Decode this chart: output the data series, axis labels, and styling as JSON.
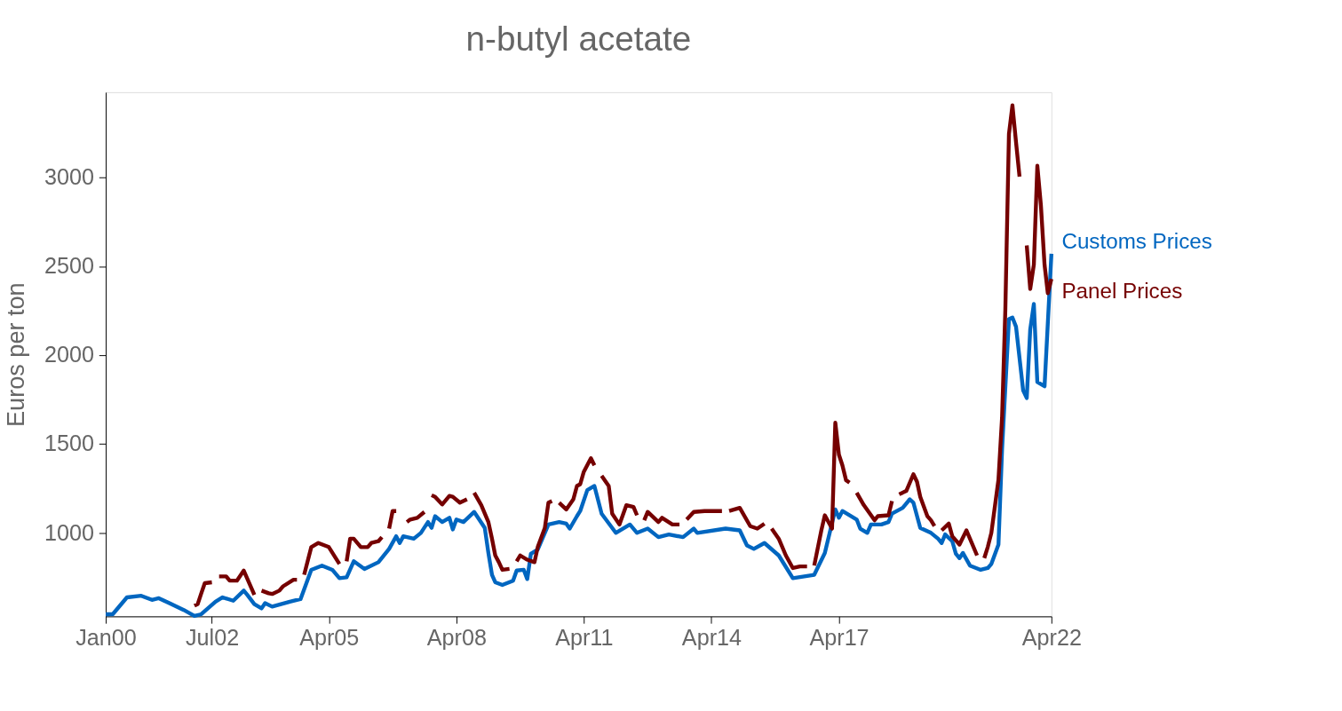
{
  "chart_data": {
    "type": "line",
    "title": "n-butyl acetate",
    "ylabel": "Euros per ton",
    "xlim": [
      "2000-01",
      "2022-04"
    ],
    "xticks": [
      {
        "value": "2000-01",
        "label": "Jan00"
      },
      {
        "value": "2002-07",
        "label": "Jul02"
      },
      {
        "value": "2005-04",
        "label": "Apr05"
      },
      {
        "value": "2008-04",
        "label": "Apr08"
      },
      {
        "value": "2011-04",
        "label": "Apr11"
      },
      {
        "value": "2014-04",
        "label": "Apr14"
      },
      {
        "value": "2017-04",
        "label": "Apr17"
      },
      {
        "value": "2022-04",
        "label": "Apr22"
      }
    ],
    "ylim": [
      530,
      3480
    ],
    "yticks": [
      1000,
      1500,
      2000,
      2500,
      3000
    ],
    "grid": false,
    "legend": false,
    "line_style": "solid",
    "marker": "none",
    "series": [
      {
        "name": "Customs Prices",
        "color": "#0066c0",
        "x": [
          "2000-01",
          "2000-03",
          "2000-07",
          "2000-11",
          "2001-02",
          "2001-04",
          "2001-07",
          "2001-11",
          "2002-02",
          "2002-04",
          "2002-08",
          "2002-10",
          "2003-01",
          "2003-04",
          "2003-05",
          "2003-07",
          "2003-09",
          "2003-10",
          "2003-12",
          "2004-05",
          "2004-08",
          "2004-11",
          "2005-02",
          "2005-05",
          "2005-07",
          "2005-09",
          "2005-11",
          "2006-02",
          "2006-06",
          "2006-09",
          "2006-11",
          "2006-12",
          "2007-01",
          "2007-04",
          "2007-06",
          "2007-08",
          "2007-09",
          "2007-10",
          "2007-12",
          "2008-02",
          "2008-03",
          "2008-04",
          "2008-06",
          "2008-09",
          "2008-12",
          "2009-01",
          "2009-02",
          "2009-03",
          "2009-05",
          "2009-08",
          "2009-09",
          "2009-11",
          "2009-12",
          "2010-01",
          "2010-03",
          "2010-06",
          "2010-09",
          "2010-11",
          "2010-12",
          "2011-02",
          "2011-03",
          "2011-05",
          "2011-07",
          "2011-09",
          "2012-01",
          "2012-05",
          "2012-07",
          "2012-10",
          "2013-01",
          "2013-04",
          "2013-08",
          "2013-11",
          "2013-12",
          "2014-08",
          "2014-12",
          "2015-02",
          "2015-04",
          "2015-07",
          "2015-11",
          "2016-03",
          "2016-09",
          "2016-12",
          "2017-03",
          "2017-04",
          "2017-05",
          "2017-09",
          "2017-10",
          "2017-12",
          "2018-01",
          "2018-04",
          "2018-06",
          "2018-07",
          "2018-10",
          "2018-12",
          "2019-01",
          "2019-03",
          "2019-06",
          "2019-08",
          "2019-09",
          "2019-10",
          "2019-12",
          "2020-01",
          "2020-02",
          "2020-03",
          "2020-05",
          "2020-08",
          "2020-10",
          "2020-11",
          "2021-01",
          "2021-02",
          "2021-04",
          "2021-05",
          "2021-06",
          "2021-08",
          "2021-09",
          "2021-10",
          "2021-11",
          "2021-12",
          "2022-02",
          "2022-04"
        ],
        "values": [
          542,
          542,
          637,
          646,
          623,
          632,
          604,
          566,
          533,
          542,
          613,
          637,
          618,
          675,
          651,
          599,
          575,
          604,
          585,
          613,
          627,
          792,
          816,
          792,
          745,
          750,
          840,
          797,
          835,
          910,
          981,
          943,
          981,
          967,
          1000,
          1061,
          1028,
          1094,
          1061,
          1085,
          1019,
          1075,
          1061,
          1118,
          1028,
          887,
          764,
          722,
          707,
          731,
          788,
          792,
          740,
          882,
          906,
          1047,
          1061,
          1052,
          1024,
          1094,
          1123,
          1241,
          1264,
          1108,
          1000,
          1047,
          1000,
          1024,
          976,
          991,
          976,
          1024,
          1000,
          1024,
          1014,
          929,
          910,
          943,
          873,
          745,
          764,
          887,
          1132,
          1085,
          1123,
          1075,
          1024,
          1000,
          1047,
          1047,
          1061,
          1108,
          1141,
          1189,
          1170,
          1028,
          1000,
          967,
          943,
          991,
          953,
          882,
          858,
          887,
          816,
          792,
          802,
          825,
          934,
          1472,
          2203,
          2212,
          2160,
          1802,
          1759,
          2146,
          2288,
          1849,
          1825,
          2571
        ]
      },
      {
        "name": "Panel Prices",
        "color": "#750000",
        "x": [
          "2002-02",
          "2002-03",
          "2002-04",
          "2002-05",
          "2002-07",
          "2002-08",
          "2002-09",
          "2002-11",
          "2002-12",
          "2003-02",
          "2003-04",
          "2003-07",
          "2003-08",
          "2003-09",
          "2003-11",
          "2003-12",
          "2004-02",
          "2004-03",
          "2004-06",
          "2004-07",
          "2004-08",
          "2004-09",
          "2004-11",
          "2005-01",
          "2005-04",
          "2005-07",
          "2005-08",
          "2005-09",
          "2005-10",
          "2005-11",
          "2006-01",
          "2006-03",
          "2006-04",
          "2006-06",
          "2006-07",
          "2006-08",
          "2006-09",
          "2006-10",
          "2006-11",
          "2006-12",
          "2007-02",
          "2007-03",
          "2007-05",
          "2007-07",
          "2007-08",
          "2007-09",
          "2007-10",
          "2007-12",
          "2008-02",
          "2008-03",
          "2008-05",
          "2008-07",
          "2008-08",
          "2008-09",
          "2008-11",
          "2009-01",
          "2009-02",
          "2009-03",
          "2009-04",
          "2009-05",
          "2009-07",
          "2009-08",
          "2009-09",
          "2009-10",
          "2009-12",
          "2010-02",
          "2010-03",
          "2010-05",
          "2010-06",
          "2010-07",
          "2010-08",
          "2010-09",
          "2010-11",
          "2011-01",
          "2011-02",
          "2011-03",
          "2011-04",
          "2011-06",
          "2011-07",
          "2011-08",
          "2011-09",
          "2011-11",
          "2011-12",
          "2012-02",
          "2012-04",
          "2012-06",
          "2012-07",
          "2012-08",
          "2012-09",
          "2012-10",
          "2013-01",
          "2013-02",
          "2013-05",
          "2013-07",
          "2013-08",
          "2013-09",
          "2013-11",
          "2014-02",
          "2014-07",
          "2014-08",
          "2014-09",
          "2014-12",
          "2015-03",
          "2015-05",
          "2015-07",
          "2015-08",
          "2015-09",
          "2015-11",
          "2016-01",
          "2016-03",
          "2016-05",
          "2016-07",
          "2016-08",
          "2016-09",
          "2016-11",
          "2016-12",
          "2017-02",
          "2017-03",
          "2017-04",
          "2017-05",
          "2017-06",
          "2017-07",
          "2017-08",
          "2017-09",
          "2017-11",
          "2018-02",
          "2018-03",
          "2018-06",
          "2018-07",
          "2018-08",
          "2018-09",
          "2018-11",
          "2019-01",
          "2019-02",
          "2019-03",
          "2019-05",
          "2019-06",
          "2019-07",
          "2019-08",
          "2019-09",
          "2019-11",
          "2019-12",
          "2020-02",
          "2020-04",
          "2020-05",
          "2020-07",
          "2020-08",
          "2020-09",
          "2020-10",
          "2020-11",
          "2021-01",
          "2021-02",
          "2021-03",
          "2021-04",
          "2021-05",
          "2021-06",
          "2021-07",
          "2021-08",
          "2021-09",
          "2021-10",
          "2021-11",
          "2021-12",
          "2022-01",
          "2022-02",
          "2022-03",
          "2022-04"
        ],
        "values": [
          590,
          599,
          660,
          717,
          722,
          null,
          755,
          755,
          731,
          731,
          788,
          651,
          null,
          675,
          660,
          656,
          675,
          698,
          736,
          736,
          null,
          764,
          920,
          943,
          920,
          825,
          null,
          840,
          967,
          967,
          920,
          920,
          943,
          953,
          976,
          null,
          1024,
          1123,
          1123,
          null,
          1061,
          1075,
          1085,
          1118,
          null,
          1212,
          1203,
          1160,
          1208,
          1203,
          1170,
          1189,
          null,
          1226,
          1156,
          1061,
          967,
          873,
          835,
          792,
          797,
          null,
          840,
          873,
          849,
          835,
          920,
          1028,
          1170,
          1179,
          null,
          1170,
          1132,
          1189,
          1264,
          1274,
          1344,
          1420,
          1380,
          null,
          1321,
          1264,
          1108,
          1047,
          1156,
          1146,
          1099,
          null,
          1071,
          1118,
          1061,
          1085,
          1047,
          1047,
          null,
          1075,
          1118,
          1123,
          1123,
          null,
          1123,
          1141,
          1038,
          1024,
          1052,
          null,
          1024,
          967,
          873,
          802,
          811,
          811,
          null,
          816,
          1014,
          1099,
          1024,
          1620,
          1440,
          1380,
          1297,
          1283,
          null,
          1226,
          1156,
          1071,
          1094,
          1099,
          1179,
          null,
          1217,
          1236,
          1330,
          1288,
          1203,
          1094,
          1071,
          1038,
          null,
          1014,
          1052,
          981,
          934,
          1014,
          967,
          873,
          null,
          858,
          920,
          1000,
          1300,
          1650,
          2255,
          3245,
          3406,
          3198,
          3005,
          null,
          2618,
          2373,
          2509,
          3066,
          2840,
          2509,
          2349,
          2429
        ]
      }
    ]
  }
}
